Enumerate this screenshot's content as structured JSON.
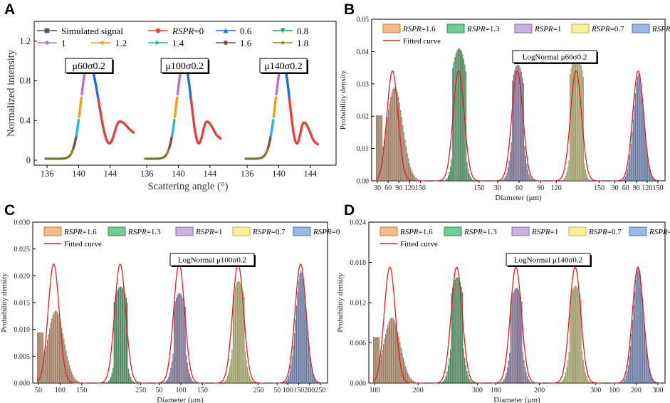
{
  "figure": {
    "panel_letters": [
      "A",
      "B",
      "C",
      "D"
    ]
  },
  "chart_data": [
    {
      "panel": "A",
      "type": "line",
      "xlabel": "Scattering angle (°)",
      "ylabel": "Normalized intensity",
      "x_ticks": [
        "136",
        "140",
        "144"
      ],
      "y_ticks": [
        "0",
        "0.4",
        "0.8",
        "1.2"
      ],
      "ylim": [
        -0.05,
        1.4
      ],
      "legend": [
        {
          "name": "Simulated signal",
          "color": "#555555",
          "marker": "square"
        },
        {
          "name": "RSPR=0",
          "color": "#e84040",
          "marker": "circle"
        },
        {
          "name": "0.6",
          "color": "#1a6fd0",
          "marker": "triangle-up"
        },
        {
          "name": "0.8",
          "color": "#169e7a",
          "marker": "triangle-down"
        },
        {
          "name": "1",
          "color": "#b96be0",
          "marker": "diamond"
        },
        {
          "name": "1.2",
          "color": "#f0a010",
          "marker": "triangle-left"
        },
        {
          "name": "1.4",
          "color": "#22b8d8",
          "marker": "triangle-right"
        },
        {
          "name": "1.6",
          "color": "#8a4a4a",
          "marker": "hexagon"
        },
        {
          "name": "1.8",
          "color": "#8a8a2a",
          "marker": "star"
        }
      ],
      "subplots": [
        {
          "label": "μ60σ0.2",
          "xlim": [
            135,
            146
          ],
          "peak_x": 141.2,
          "min_x": 143.9,
          "second_peak_x": 145.2,
          "second_peak_y": 0.39,
          "tail_y": 0.3
        },
        {
          "label": "μ100σ0.2",
          "xlim": [
            135,
            146
          ],
          "peak_x": 140.7,
          "min_x": 142.6,
          "second_peak_x": 143.6,
          "second_peak_y": 0.39,
          "tail_y": 0.24
        },
        {
          "label": "μ140σ0.2",
          "xlim": [
            135,
            146
          ],
          "peak_x": 140.5,
          "min_x": 142.3,
          "second_peak_x": 143.2,
          "second_peak_y": 0.38,
          "tail_y": 0.18
        }
      ],
      "color_segments": [
        {
          "from_y": 0,
          "to_y": 0.12,
          "color": "#8a8a2a"
        },
        {
          "from_y": 0.12,
          "to_y": 0.25,
          "color": "#8a4a4a"
        },
        {
          "from_y": 0.25,
          "to_y": 0.42,
          "color": "#22b8d8"
        },
        {
          "from_y": 0.42,
          "to_y": 0.65,
          "color": "#f0a010"
        },
        {
          "from_y": 0.65,
          "to_y": 0.95,
          "color": "#b96be0"
        },
        {
          "from_y": 0.95,
          "to_y": 1.0,
          "color": "#169e7a"
        },
        {
          "desc_to_y": 0.95,
          "color": "#169e7a"
        },
        {
          "desc_to_y": 0.6,
          "color": "#1a6fd0"
        },
        {
          "desc_to_y": 0.0,
          "color": "#e84040"
        }
      ]
    },
    {
      "panel": "B",
      "type": "bar",
      "ylabel": "Probability density",
      "xlabel": "Diameter (μm)",
      "ylim": [
        0,
        0.05
      ],
      "y_ticks": [
        "0.00",
        "0.01",
        "0.02",
        "0.03",
        "0.04",
        "0.05"
      ],
      "box_label": "LogNormal μ60σ0.2",
      "fit_peak": 0.034,
      "groups": [
        {
          "name": "RSPR=1.6",
          "tick_labels": [
            "30",
            "60",
            "90",
            "120",
            "150"
          ],
          "dmin": 30,
          "dmax": 150,
          "mu": 60,
          "hist_shape": "broad",
          "hist_peak": 0.029
        },
        {
          "name": "RSPR=1.3",
          "tick_labels": [
            "150"
          ],
          "dmin": 0,
          "dmax": 150,
          "mu": 60,
          "hist_shape": "narrow",
          "hist_peak": 0.041
        },
        {
          "name": "RSPR=1",
          "tick_labels": [
            "30",
            "60",
            "90"
          ],
          "dmin": 30,
          "dmax": 90,
          "mu": 60,
          "hist_shape": "mid",
          "hist_peak": 0.036
        },
        {
          "name": "RSPR=0.7",
          "tick_labels": [
            "120",
            "150"
          ],
          "dmin": 0,
          "dmax": 150,
          "mu": 60,
          "hist_shape": "narrow",
          "hist_peak": 0.039
        },
        {
          "name": "RSPR=0",
          "tick_labels": [
            "30",
            "60",
            "90",
            "120",
            "150"
          ],
          "dmin": 30,
          "dmax": 150,
          "mu": 60,
          "hist_shape": "match",
          "hist_peak": 0.033
        }
      ]
    },
    {
      "panel": "C",
      "type": "bar",
      "ylabel": "Probability density",
      "xlabel": "Diameter (μm)",
      "ylim": [
        0,
        0.03
      ],
      "y_ticks": [
        "0.000",
        "0.005",
        "0.010",
        "0.015",
        "0.020",
        "0.025",
        "0.030"
      ],
      "box_label": "LogNormal μ100σ0.2",
      "fit_peak": 0.0222,
      "groups": [
        {
          "name": "RSPR=1.6",
          "tick_labels": [
            "50",
            "100",
            "150"
          ],
          "dmin": 30,
          "dmax": 200,
          "mu": 100,
          "hist_shape": "broad",
          "hist_peak": 0.0135
        },
        {
          "name": "RSPR=1.3",
          "tick_labels": [
            "250"
          ],
          "dmin": 30,
          "dmax": 250,
          "mu": 100,
          "hist_shape": "narrow",
          "hist_peak": 0.018
        },
        {
          "name": "RSPR=1",
          "tick_labels": [
            "50",
            "100",
            "150"
          ],
          "dmin": 30,
          "dmax": 200,
          "mu": 100,
          "hist_shape": "mid",
          "hist_peak": 0.0168
        },
        {
          "name": "RSPR=0.7",
          "tick_labels": [
            "250"
          ],
          "dmin": 30,
          "dmax": 250,
          "mu": 100,
          "hist_shape": "mid",
          "hist_peak": 0.019
        },
        {
          "name": "RSPR=0",
          "tick_labels": [
            "50",
            "100",
            "150",
            "200",
            "250"
          ],
          "dmin": 30,
          "dmax": 250,
          "mu": 100,
          "hist_shape": "match",
          "hist_peak": 0.021
        }
      ]
    },
    {
      "panel": "D",
      "type": "bar",
      "ylabel": "Probability density",
      "xlabel": "Diameter (μm)",
      "ylim": [
        0,
        0.024
      ],
      "y_ticks": [
        "0.000",
        "0.006",
        "0.012",
        "0.018",
        "0.024"
      ],
      "box_label": "LogNormal μ140σ0.2",
      "fit_peak": 0.0173,
      "groups": [
        {
          "name": "RSPR=1.6",
          "tick_labels": [
            "100",
            "200"
          ],
          "dmin": 50,
          "dmax": 300,
          "mu": 140,
          "hist_shape": "broad",
          "hist_peak": 0.0098
        },
        {
          "name": "RSPR=1.3",
          "tick_labels": [
            "300"
          ],
          "dmin": 50,
          "dmax": 300,
          "mu": 140,
          "hist_shape": "mid",
          "hist_peak": 0.0158
        },
        {
          "name": "RSPR=1",
          "tick_labels": [
            "100",
            "200"
          ],
          "dmin": 50,
          "dmax": 300,
          "mu": 140,
          "hist_shape": "mid",
          "hist_peak": 0.0142
        },
        {
          "name": "RSPR=0.7",
          "tick_labels": [
            "300"
          ],
          "dmin": 50,
          "dmax": 300,
          "mu": 140,
          "hist_shape": "mid",
          "hist_peak": 0.0145
        },
        {
          "name": "RSPR=0",
          "tick_labels": [
            "100",
            "200",
            "300"
          ],
          "dmin": 50,
          "dmax": 300,
          "mu": 140,
          "hist_shape": "match",
          "hist_peak": 0.0172
        }
      ]
    }
  ],
  "histogram_legend": [
    {
      "name": "RSPR=1.6",
      "fill": "#f5bd8f",
      "stroke": "#c7803e",
      "bar": "#8a6545"
    },
    {
      "name": "RSPR=1.3",
      "fill": "#6fcf8f",
      "stroke": "#2f8a4e",
      "bar": "#2e6e42"
    },
    {
      "name": "RSPR=1",
      "fill": "#c8b0e0",
      "stroke": "#8a6ab0",
      "bar": "#605578"
    },
    {
      "name": "RSPR=0.7",
      "fill": "#f7f19a",
      "stroke": "#bdb54a",
      "bar": "#8c8a4a"
    },
    {
      "name": "RSPR=0",
      "fill": "#9ab7ea",
      "stroke": "#4f76c0",
      "bar": "#4d6391"
    }
  ],
  "fit_legend": {
    "name": "Fitted curve",
    "color": "#e02020"
  }
}
